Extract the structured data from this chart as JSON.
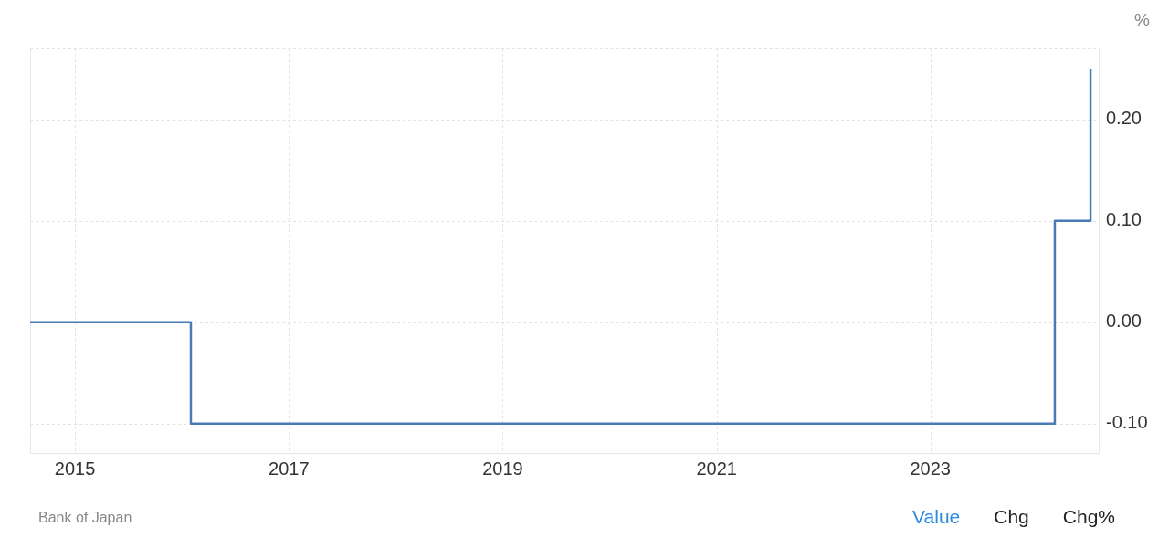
{
  "chart_data": {
    "type": "step",
    "x": [
      "2014-08",
      "2016-02",
      "2024-03",
      "2024-07"
    ],
    "values": [
      0,
      -0.1,
      0.1,
      0.25
    ],
    "color": "#4a7ab6",
    "xlim": [
      "2014-08",
      "2024-08"
    ],
    "xticks": [
      "2015",
      "2017",
      "2019",
      "2021",
      "2023"
    ],
    "ylim": [
      -0.13,
      0.27
    ],
    "yticks": [
      {
        "value": -0.1,
        "label": "-0.10"
      },
      {
        "value": 0,
        "label": "0.00"
      },
      {
        "value": 0.1,
        "label": "0.10"
      },
      {
        "value": 0.2,
        "label": "0.20"
      }
    ],
    "ylabel": "%",
    "grid": true,
    "annotations": [
      "Bank of Japan",
      "Value",
      "Chg",
      "Chg%"
    ]
  }
}
